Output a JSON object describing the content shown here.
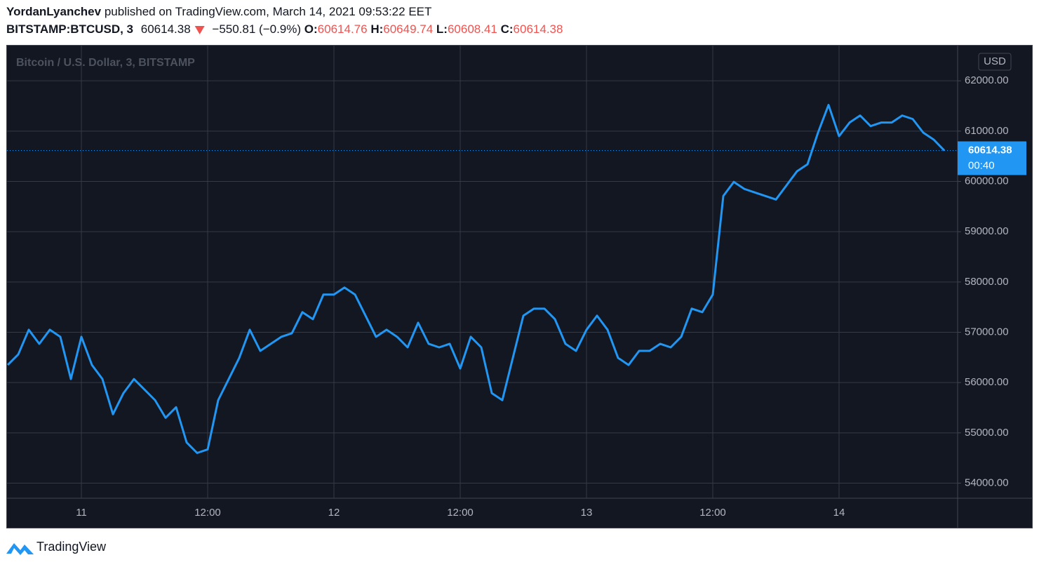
{
  "header": {
    "author": "YordanLyanchev",
    "published": "published on TradingView.com, March 14, 2021 09:53:22 EET",
    "symbol": "BITSTAMP:BTCUSD, 3",
    "last": "60614.38",
    "change": "−550.81 (−0.9%)",
    "open_label": "O:",
    "open": "60614.76",
    "high_label": "H:",
    "high": "60649.74",
    "low_label": "L:",
    "low": "60608.41",
    "close_label": "C:",
    "close": "60614.38"
  },
  "footer": {
    "brand": "TradingView"
  },
  "chart_data": {
    "type": "line",
    "title": "Bitcoin / U.S. Dollar, 3, BITSTAMP",
    "currency": "USD",
    "countdown": "00:40",
    "categories": [
      null,
      null,
      null,
      null,
      null,
      null,
      null,
      "11",
      null,
      null,
      null,
      null,
      null,
      null,
      null,
      null,
      null,
      null,
      null,
      "12:00",
      null,
      null,
      null,
      null,
      null,
      null,
      null,
      null,
      null,
      null,
      null,
      "12",
      null,
      null,
      null,
      null,
      null,
      null,
      null,
      null,
      null,
      null,
      null,
      "12:00",
      null,
      null,
      null,
      null,
      null,
      null,
      null,
      null,
      null,
      null,
      null,
      "13",
      null,
      null,
      null,
      null,
      null,
      null,
      null,
      null,
      null,
      null,
      null,
      "12:00",
      null,
      null,
      null,
      null,
      null,
      null,
      null,
      null,
      null,
      null,
      null,
      "14",
      null,
      null,
      null,
      null,
      null,
      null,
      null,
      null,
      null,
      null
    ],
    "series": [
      {
        "name": "BTCUSD",
        "color": "#2196f3",
        "values": [
          56350,
          56560,
          57050,
          56770,
          57050,
          56910,
          56070,
          56910,
          56350,
          56070,
          55370,
          55790,
          56070,
          55860,
          55650,
          55300,
          55510,
          54810,
          54600,
          54670,
          55650,
          56070,
          56490,
          57050,
          56630,
          56770,
          56910,
          56980,
          57400,
          57260,
          57750,
          57750,
          57890,
          57750,
          57330,
          56910,
          57050,
          56910,
          56700,
          57190,
          56770,
          56700,
          56770,
          56280,
          56910,
          56700,
          55790,
          55650,
          56490,
          57330,
          57470,
          57470,
          57260,
          56770,
          56630,
          57050,
          57330,
          57050,
          56490,
          56350,
          56630,
          56630,
          56770,
          56700,
          56910,
          57470,
          57400,
          57750,
          59710,
          59990,
          59850,
          59780,
          59710,
          59640,
          59920,
          60200,
          60340,
          60970,
          61520,
          60900,
          61170,
          61310,
          61100,
          61170,
          61170,
          61310,
          61240,
          60970,
          60830,
          60614.38
        ]
      }
    ],
    "ylim": [
      53700,
      62700
    ],
    "yticks": [
      {
        "value": 54000,
        "label": "54000.00"
      },
      {
        "value": 55000,
        "label": "55000.00"
      },
      {
        "value": 56000,
        "label": "56000.00"
      },
      {
        "value": 57000,
        "label": "57000.00"
      },
      {
        "value": 58000,
        "label": "58000.00"
      },
      {
        "value": 59000,
        "label": "59000.00"
      },
      {
        "value": 60000,
        "label": "60000.00"
      },
      {
        "value": 61000,
        "label": "61000.00"
      },
      {
        "value": 62000,
        "label": "62000.00"
      }
    ],
    "grid": true
  }
}
